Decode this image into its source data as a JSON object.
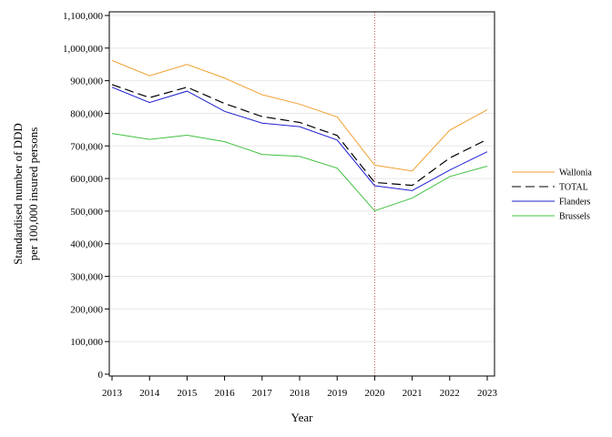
{
  "chart_data": {
    "type": "line",
    "xlabel": "Year",
    "ylabel_lines": [
      "Standardised number of DDD",
      "per 100,000 insured persons"
    ],
    "x": [
      2013,
      2014,
      2015,
      2016,
      2017,
      2018,
      2019,
      2020,
      2021,
      2022,
      2023
    ],
    "x_tick_labels": [
      "2013",
      "2014",
      "2015",
      "2016",
      "2017",
      "2018",
      "2019",
      "2020",
      "2021",
      "2022",
      "2023"
    ],
    "ylim": [
      0,
      1100000
    ],
    "y_ticks": [
      0,
      100000,
      200000,
      300000,
      400000,
      500000,
      600000,
      700000,
      800000,
      900000,
      1000000,
      1100000
    ],
    "y_tick_labels": [
      "0",
      "100,000",
      "200,000",
      "300,000",
      "400,000",
      "500,000",
      "600,000",
      "700,000",
      "800,000",
      "900,000",
      "1,000,000",
      "1,100,000"
    ],
    "grid": "horizontal",
    "legend_position": "right",
    "reference_line": {
      "x": 2020,
      "color": "#c0504d",
      "style": "dotted"
    },
    "series": [
      {
        "name": "Wallonia",
        "color": "#f0a030",
        "dash": "none",
        "values": [
          962000,
          915000,
          950000,
          908000,
          857000,
          828000,
          789000,
          641000,
          623000,
          748000,
          811000
        ]
      },
      {
        "name": "TOTAL",
        "color": "#000000",
        "dash": "10,5",
        "values": [
          888000,
          848000,
          880000,
          830000,
          790000,
          772000,
          732000,
          588000,
          579000,
          663000,
          720000
        ]
      },
      {
        "name": "Flanders",
        "color": "#2020d0",
        "dash": "none",
        "values": [
          880000,
          833000,
          868000,
          806000,
          770000,
          759000,
          718000,
          578000,
          563000,
          626000,
          682000
        ]
      },
      {
        "name": "Brussels",
        "color": "#40c040",
        "dash": "none",
        "values": [
          738000,
          720000,
          733000,
          713000,
          674000,
          668000,
          632000,
          501000,
          540000,
          606000,
          638000
        ]
      }
    ]
  }
}
